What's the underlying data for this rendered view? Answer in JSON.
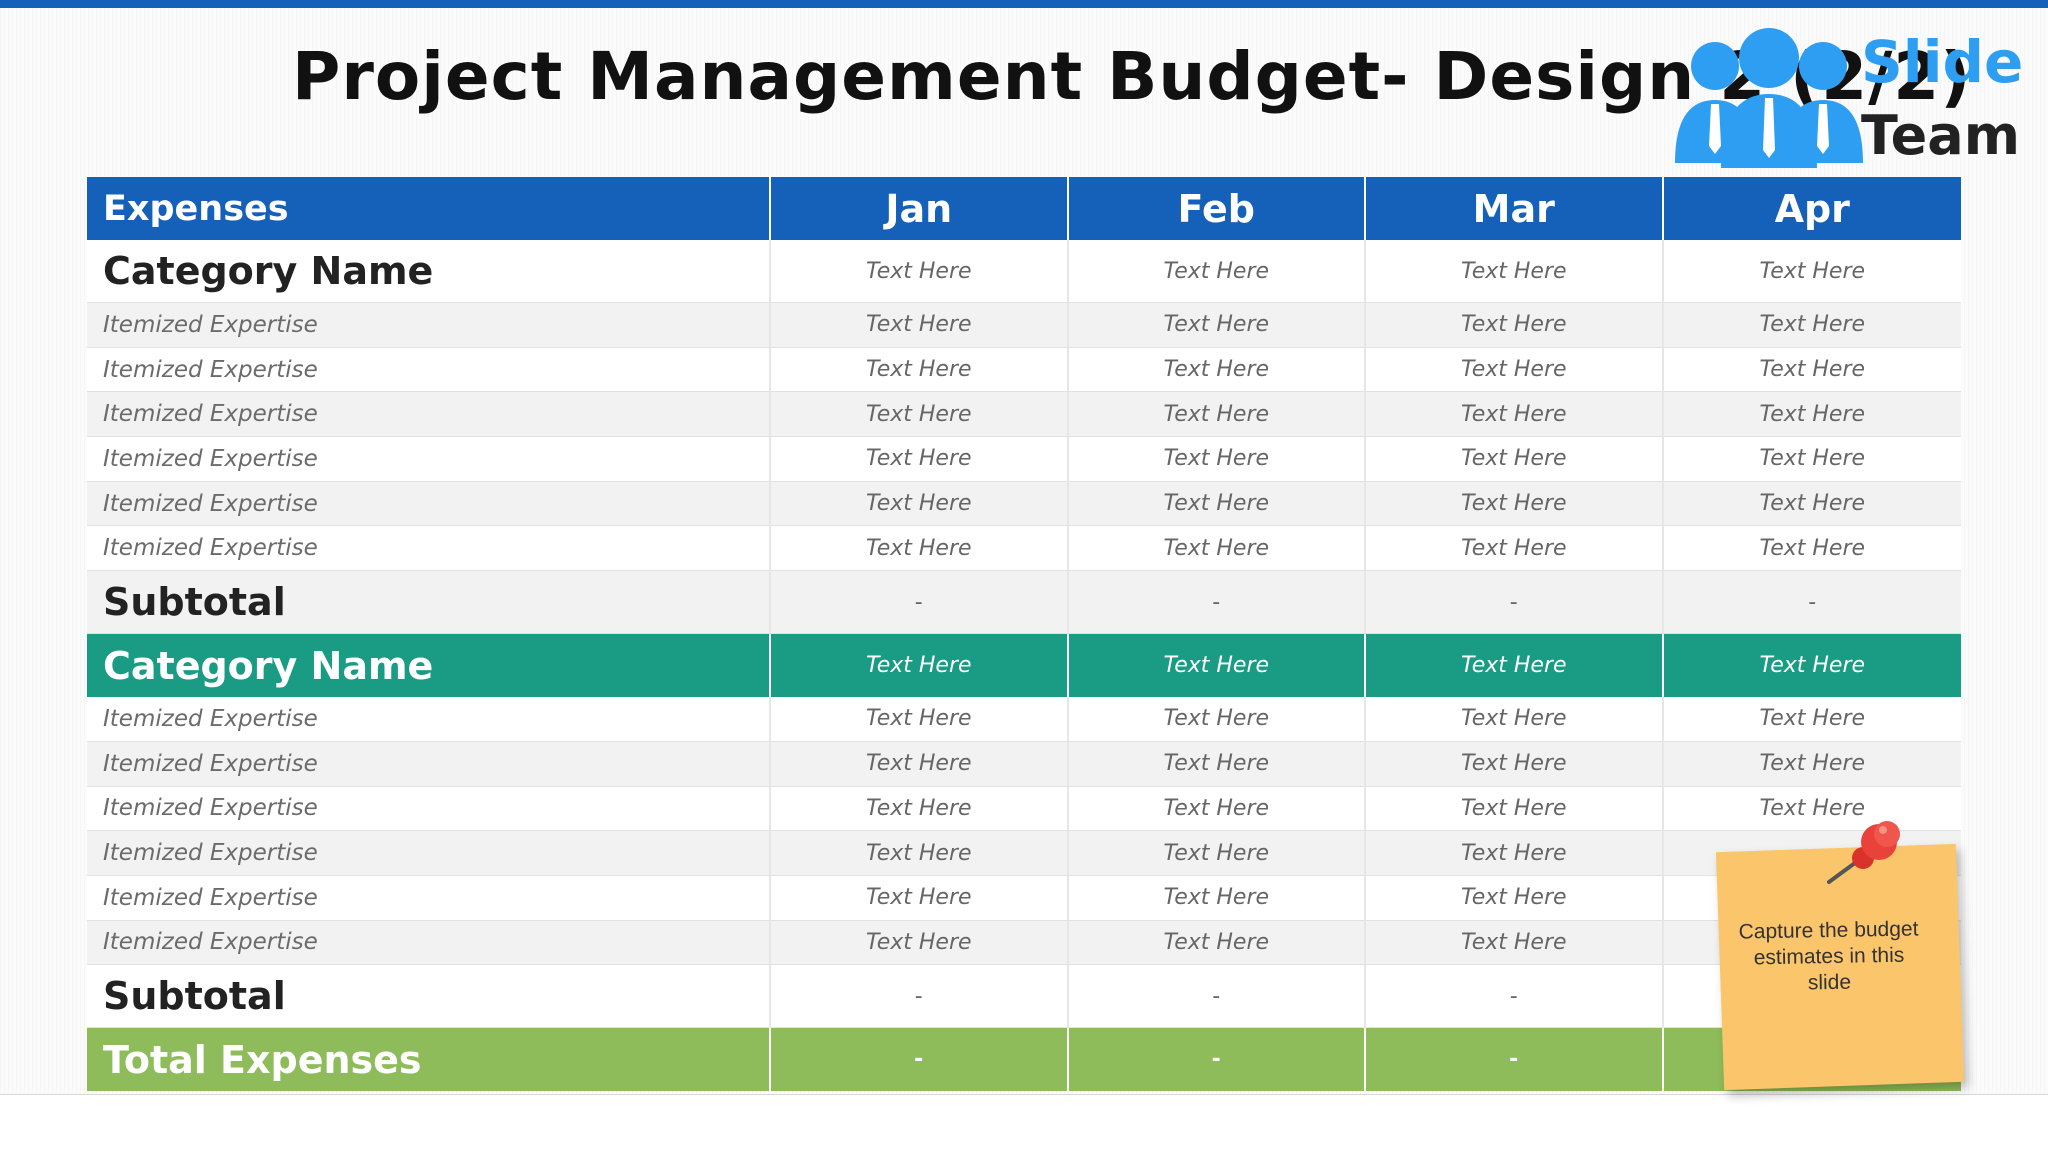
{
  "slide": {
    "title": "Project Management Budget- Design 2 (2/2)"
  },
  "logo": {
    "line1": "Slide",
    "line2": "Team",
    "colors": {
      "primary": "#2e9ef3",
      "text": "#222222"
    }
  },
  "table": {
    "header": {
      "label": "Expenses",
      "months": [
        "Jan",
        "Feb",
        "Mar",
        "Apr"
      ]
    },
    "section1": {
      "category": {
        "label": "Category Name",
        "values": [
          "Text Here",
          "Text Here",
          "Text Here",
          "Text Here"
        ]
      },
      "items": [
        {
          "label": "Itemized Expertise",
          "values": [
            "Text Here",
            "Text Here",
            "Text Here",
            "Text Here"
          ]
        },
        {
          "label": "Itemized Expertise",
          "values": [
            "Text Here",
            "Text Here",
            "Text Here",
            "Text Here"
          ]
        },
        {
          "label": "Itemized Expertise",
          "values": [
            "Text Here",
            "Text Here",
            "Text Here",
            "Text Here"
          ]
        },
        {
          "label": "Itemized Expertise",
          "values": [
            "Text Here",
            "Text Here",
            "Text Here",
            "Text Here"
          ]
        },
        {
          "label": "Itemized Expertise",
          "values": [
            "Text Here",
            "Text Here",
            "Text Here",
            "Text Here"
          ]
        },
        {
          "label": "Itemized Expertise",
          "values": [
            "Text Here",
            "Text Here",
            "Text Here",
            "Text Here"
          ]
        }
      ],
      "subtotal": {
        "label": "Subtotal",
        "values": [
          "-",
          "-",
          "-",
          "-"
        ]
      }
    },
    "section2": {
      "category": {
        "label": "Category Name",
        "values": [
          "Text Here",
          "Text Here",
          "Text Here",
          "Text Here"
        ]
      },
      "items": [
        {
          "label": "Itemized Expertise",
          "values": [
            "Text Here",
            "Text Here",
            "Text Here",
            "Text Here"
          ]
        },
        {
          "label": "Itemized Expertise",
          "values": [
            "Text Here",
            "Text Here",
            "Text Here",
            "Text Here"
          ]
        },
        {
          "label": "Itemized Expertise",
          "values": [
            "Text Here",
            "Text Here",
            "Text Here",
            "Text Here"
          ]
        },
        {
          "label": "Itemized Expertise",
          "values": [
            "Text Here",
            "Text Here",
            "Text Here",
            ""
          ]
        },
        {
          "label": "Itemized Expertise",
          "values": [
            "Text Here",
            "Text Here",
            "Text Here",
            ""
          ]
        },
        {
          "label": "Itemized Expertise",
          "values": [
            "Text Here",
            "Text Here",
            "Text Here",
            ""
          ]
        }
      ],
      "subtotal": {
        "label": "Subtotal",
        "values": [
          "-",
          "-",
          "-",
          ""
        ]
      }
    },
    "total": {
      "label": "Total Expenses",
      "values": [
        "-",
        "-",
        "-",
        ""
      ]
    },
    "colors": {
      "header": "#1560b8",
      "category2": "#1a9c84",
      "total": "#8fbc5a"
    }
  },
  "sticky_note": {
    "text": "Capture the budget estimates in this slide",
    "icon": "pushpin-icon",
    "color": "#fbc66b"
  }
}
